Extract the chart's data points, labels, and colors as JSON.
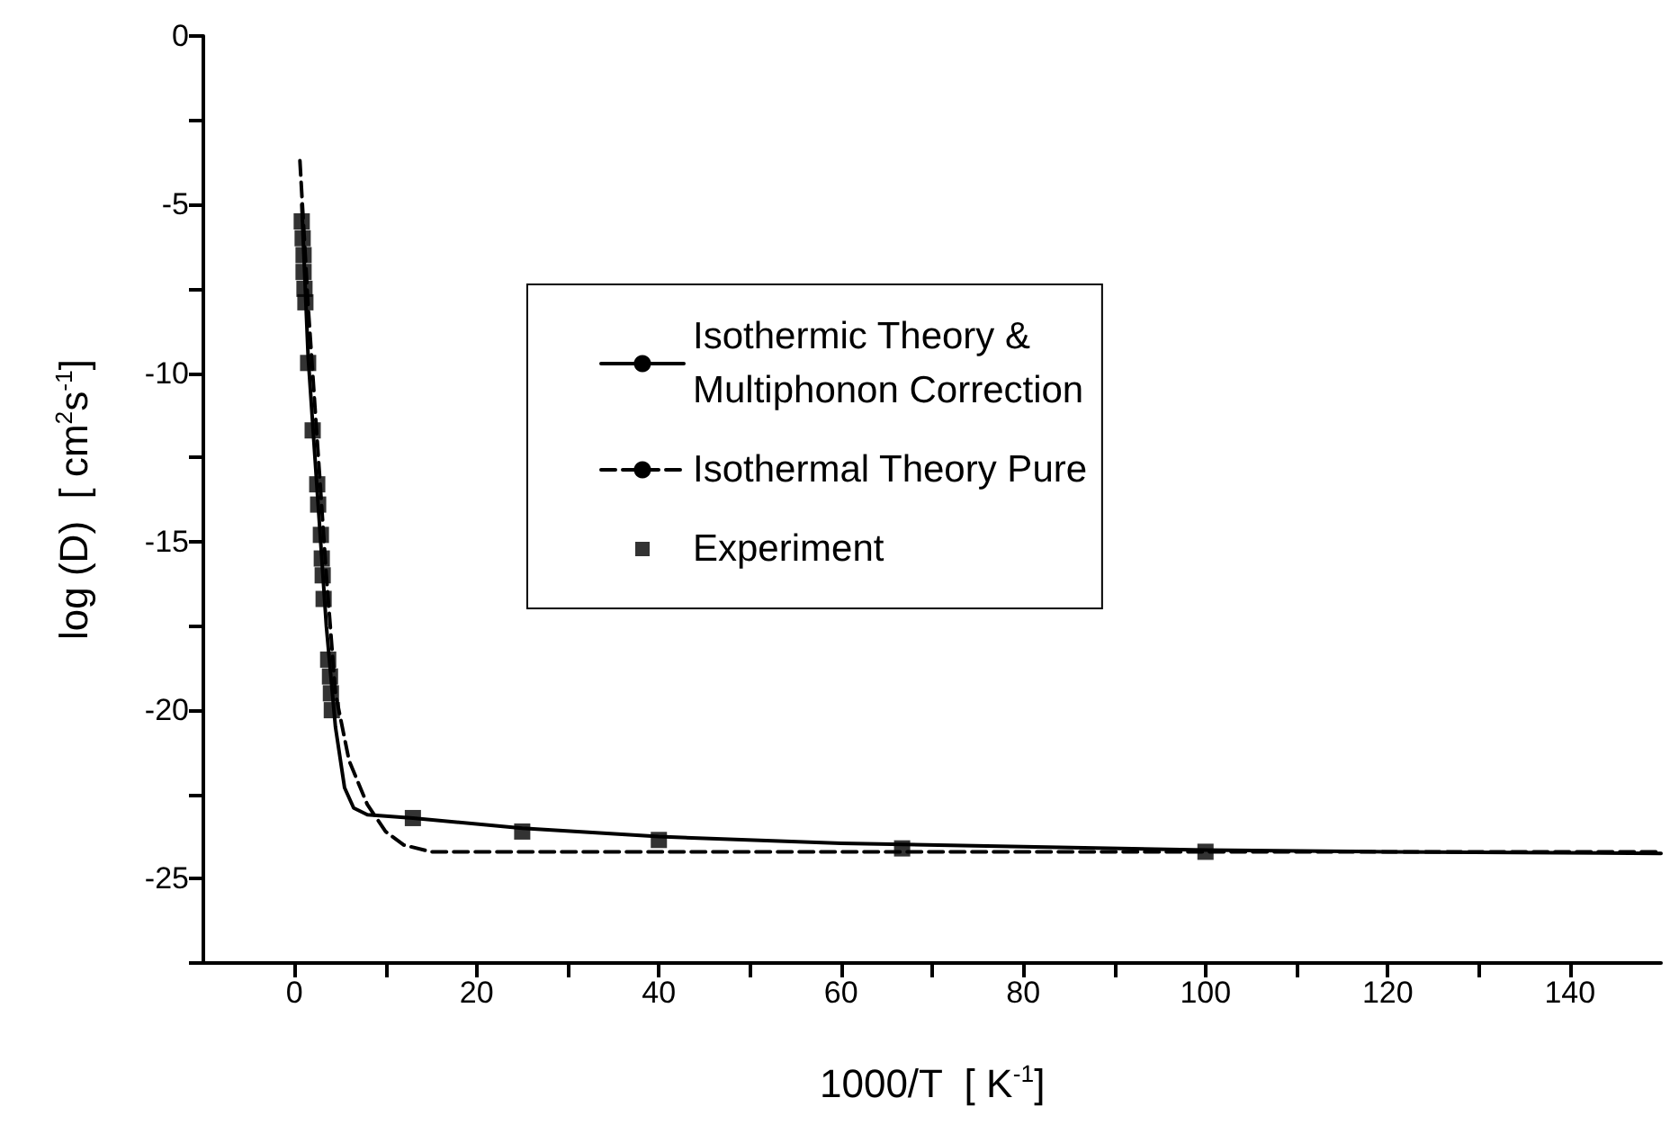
{
  "chart_data": {
    "type": "line",
    "xlabel": "1000/T  [ K$^{-1}$]",
    "ylabel": "log (D)  [ cm$^{2}$s$^{-1}$]",
    "xlim": [
      -10,
      150
    ],
    "ylim": [
      -27.5,
      0
    ],
    "xticks": [
      0,
      {
        "value": 10,
        "label": null
      },
      20,
      {
        "value": 30,
        "label": null
      },
      40,
      {
        "value": 50,
        "label": null
      },
      60,
      {
        "value": 70,
        "label": null
      },
      80,
      {
        "value": 90,
        "label": null
      },
      100,
      {
        "value": 110,
        "label": null
      },
      120,
      {
        "value": 130,
        "label": null
      },
      140
    ],
    "yticks": [
      0,
      {
        "value": -2.5,
        "label": null
      },
      -5,
      {
        "value": -7.5,
        "label": null
      },
      -10,
      {
        "value": -12.5,
        "label": null
      },
      -15,
      {
        "value": -17.5,
        "label": null
      },
      -20,
      {
        "value": -22.5,
        "label": null
      },
      -25,
      {
        "value": -27.5,
        "label": null
      }
    ],
    "grid": false,
    "legend": "top",
    "series": [
      {
        "name": "Isothermic Theory &\nMultiphonon Correction",
        "color": "#000000",
        "marker": "none",
        "line_style": "solid",
        "x": [
          0.8,
          1.5,
          2.5,
          3.5,
          4.5,
          5.5,
          6.5,
          8,
          13,
          25,
          40,
          60,
          80,
          100,
          120,
          150
        ],
        "values": [
          -5,
          -9.5,
          -13.5,
          -17.5,
          -20.5,
          -22.3,
          -22.9,
          -23.1,
          -23.2,
          -23.5,
          -23.75,
          -23.95,
          -24.05,
          -24.15,
          -24.2,
          -24.25
        ]
      },
      {
        "name": "Isothermal Theory Pure",
        "color": "#000000",
        "marker": "none",
        "line_style": "dashed",
        "x": [
          0.6,
          1.5,
          2.5,
          3.5,
          4.5,
          6,
          8,
          10,
          12,
          15,
          150
        ],
        "values": [
          -3.7,
          -8,
          -12,
          -16,
          -19.5,
          -21.5,
          -22.8,
          -23.6,
          -24,
          -24.2,
          -24.2
        ]
      },
      {
        "name": "Experiment",
        "type": "scatter",
        "color": "#000000",
        "marker": "square",
        "x": [
          0.8,
          0.9,
          1.0,
          1.0,
          1.1,
          1.2,
          1.5,
          2.0,
          2.5,
          2.6,
          2.9,
          3.0,
          3.1,
          3.2,
          3.7,
          3.9,
          4.0,
          4.1,
          13,
          25,
          40,
          66.7,
          100
        ],
        "values": [
          -5.5,
          -6,
          -6.5,
          -7,
          -7.5,
          -7.9,
          -9.7,
          -11.7,
          -13.3,
          -13.9,
          -14.8,
          -15.5,
          -16,
          -16.7,
          -18.5,
          -19,
          -19.5,
          -20,
          -23.2,
          -23.6,
          -23.85,
          -24.1,
          -24.2
        ]
      }
    ]
  }
}
